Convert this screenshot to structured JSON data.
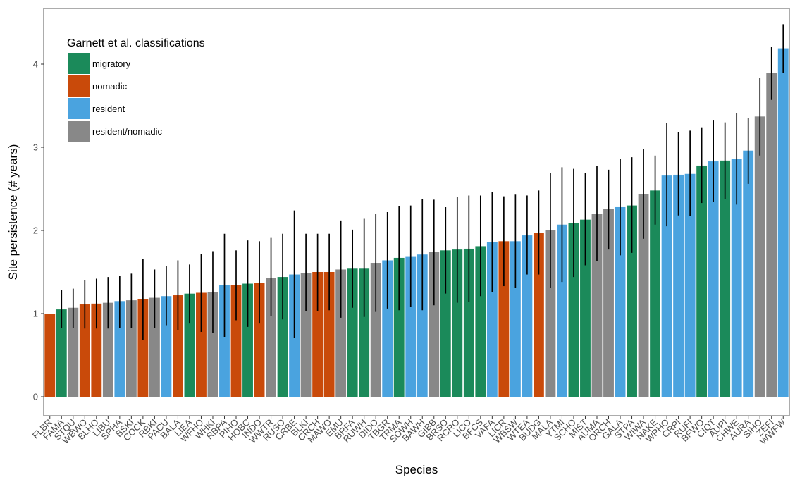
{
  "chart_data": {
    "type": "bar",
    "xlabel": "Species",
    "ylabel": "Site persistence (# years)",
    "ylim": [
      0,
      4.5
    ],
    "yticks": [
      0,
      1,
      2,
      3,
      4
    ],
    "grid": false,
    "error_bars": true,
    "legend": {
      "title": "Garnett et al. classifications",
      "placement": "top-left",
      "entries": [
        {
          "key": "migratory",
          "label": "migratory",
          "color": "#1b8a5a"
        },
        {
          "key": "nomadic",
          "label": "nomadic",
          "color": "#c94a0a"
        },
        {
          "key": "resident",
          "label": "resident",
          "color": "#4aa3df"
        },
        {
          "key": "resident/nomadic",
          "label": "resident/nomadic",
          "color": "#888888"
        }
      ]
    },
    "bars": [
      {
        "category": "FLBR",
        "value": 1.0,
        "class": "nomadic"
      },
      {
        "category": "FAMA",
        "value": 1.05,
        "class": "migratory",
        "err": [
          0.83,
          1.28
        ]
      },
      {
        "category": "STQU",
        "value": 1.07,
        "class": "resident/nomadic",
        "err": [
          0.83,
          1.3
        ]
      },
      {
        "category": "WBWO",
        "value": 1.11,
        "class": "nomadic",
        "err": [
          0.82,
          1.4
        ]
      },
      {
        "category": "BLHO",
        "value": 1.12,
        "class": "nomadic",
        "err": [
          0.82,
          1.42
        ]
      },
      {
        "category": "LIBU",
        "value": 1.13,
        "class": "resident/nomadic",
        "err": [
          0.82,
          1.44
        ]
      },
      {
        "category": "SPHA",
        "value": 1.15,
        "class": "resident",
        "err": [
          0.83,
          1.45
        ]
      },
      {
        "category": "BSKI",
        "value": 1.16,
        "class": "resident/nomadic",
        "err": [
          0.83,
          1.48
        ]
      },
      {
        "category": "COCK",
        "value": 1.17,
        "class": "nomadic",
        "err": [
          0.68,
          1.66
        ]
      },
      {
        "category": "RBKI",
        "value": 1.19,
        "class": "resident/nomadic",
        "err": [
          0.83,
          1.53
        ]
      },
      {
        "category": "PACU",
        "value": 1.21,
        "class": "resident",
        "err": [
          0.86,
          1.57
        ]
      },
      {
        "category": "BALA",
        "value": 1.22,
        "class": "nomadic",
        "err": [
          0.8,
          1.64
        ]
      },
      {
        "category": "LIEA",
        "value": 1.24,
        "class": "migratory",
        "err": [
          0.88,
          1.59
        ]
      },
      {
        "category": "WFHO",
        "value": 1.25,
        "class": "nomadic",
        "err": [
          0.78,
          1.72
        ]
      },
      {
        "category": "WHKI",
        "value": 1.26,
        "class": "resident/nomadic",
        "err": [
          0.77,
          1.75
        ]
      },
      {
        "category": "RBPA",
        "value": 1.34,
        "class": "resident",
        "err": [
          0.72,
          1.96
        ]
      },
      {
        "category": "PIHO",
        "value": 1.34,
        "class": "nomadic",
        "err": [
          0.92,
          1.76
        ]
      },
      {
        "category": "HOBC",
        "value": 1.36,
        "class": "migratory",
        "err": [
          0.84,
          1.88
        ]
      },
      {
        "category": "INDO",
        "value": 1.37,
        "class": "nomadic",
        "err": [
          0.88,
          1.87
        ]
      },
      {
        "category": "WWTR",
        "value": 1.43,
        "class": "resident/nomadic",
        "err": [
          0.97,
          1.91
        ]
      },
      {
        "category": "RUSO",
        "value": 1.44,
        "class": "migratory",
        "err": [
          0.93,
          1.96
        ]
      },
      {
        "category": "CRBE",
        "value": 1.47,
        "class": "resident",
        "err": [
          0.71,
          2.24
        ]
      },
      {
        "category": "BLKI",
        "value": 1.49,
        "class": "resident/nomadic",
        "err": [
          1.03,
          1.96
        ]
      },
      {
        "category": "CRCH",
        "value": 1.5,
        "class": "nomadic",
        "err": [
          1.03,
          1.96
        ]
      },
      {
        "category": "MAWO",
        "value": 1.5,
        "class": "nomadic",
        "err": [
          1.04,
          1.96
        ]
      },
      {
        "category": "EMU",
        "value": 1.53,
        "class": "resident/nomadic",
        "err": [
          0.95,
          2.12
        ]
      },
      {
        "category": "BRFA",
        "value": 1.54,
        "class": "migratory",
        "err": [
          1.07,
          2.01
        ]
      },
      {
        "category": "RUWH",
        "value": 1.54,
        "class": "migratory",
        "err": [
          0.96,
          2.14
        ]
      },
      {
        "category": "DIDO",
        "value": 1.61,
        "class": "resident/nomadic",
        "err": [
          1.02,
          2.2
        ]
      },
      {
        "category": "TBGR",
        "value": 1.64,
        "class": "resident",
        "err": [
          1.06,
          2.22
        ]
      },
      {
        "category": "TRMA",
        "value": 1.67,
        "class": "migratory",
        "err": [
          1.04,
          2.29
        ]
      },
      {
        "category": "SOWH",
        "value": 1.69,
        "class": "resident",
        "err": [
          1.08,
          2.3
        ]
      },
      {
        "category": "BAWH",
        "value": 1.71,
        "class": "resident",
        "err": [
          1.04,
          2.38
        ]
      },
      {
        "category": "GIBB",
        "value": 1.74,
        "class": "resident/nomadic",
        "err": [
          1.1,
          2.37
        ]
      },
      {
        "category": "BRSO",
        "value": 1.76,
        "class": "migratory",
        "err": [
          1.24,
          2.28
        ]
      },
      {
        "category": "RCRO",
        "value": 1.77,
        "class": "migratory",
        "err": [
          1.13,
          2.4
        ]
      },
      {
        "category": "LICO",
        "value": 1.78,
        "class": "migratory",
        "err": [
          1.14,
          2.42
        ]
      },
      {
        "category": "BFCS",
        "value": 1.81,
        "class": "migratory",
        "err": [
          1.21,
          2.42
        ]
      },
      {
        "category": "VAFA",
        "value": 1.86,
        "class": "resident",
        "err": [
          1.26,
          2.46
        ]
      },
      {
        "category": "LICR",
        "value": 1.87,
        "class": "nomadic",
        "err": [
          1.33,
          2.41
        ]
      },
      {
        "category": "WBSW",
        "value": 1.87,
        "class": "resident",
        "err": [
          1.31,
          2.43
        ]
      },
      {
        "category": "WTEA",
        "value": 1.94,
        "class": "resident",
        "err": [
          1.47,
          2.42
        ]
      },
      {
        "category": "BUDG",
        "value": 1.97,
        "class": "nomadic",
        "err": [
          1.47,
          2.48
        ]
      },
      {
        "category": "MALA",
        "value": 2.0,
        "class": "resident/nomadic",
        "err": [
          1.31,
          2.69
        ]
      },
      {
        "category": "YTMI",
        "value": 2.07,
        "class": "resident",
        "err": [
          1.38,
          2.76
        ]
      },
      {
        "category": "SCHO",
        "value": 2.09,
        "class": "migratory",
        "err": [
          1.44,
          2.74
        ]
      },
      {
        "category": "MIST",
        "value": 2.13,
        "class": "migratory",
        "err": [
          1.58,
          2.69
        ]
      },
      {
        "category": "AUMA",
        "value": 2.2,
        "class": "resident/nomadic",
        "err": [
          1.63,
          2.78
        ]
      },
      {
        "category": "ORCH",
        "value": 2.26,
        "class": "resident/nomadic",
        "err": [
          1.77,
          2.73
        ]
      },
      {
        "category": "GALA",
        "value": 2.28,
        "class": "resident",
        "err": [
          1.7,
          2.86
        ]
      },
      {
        "category": "STPA",
        "value": 2.3,
        "class": "migratory",
        "err": [
          1.73,
          2.88
        ]
      },
      {
        "category": "WIWA",
        "value": 2.44,
        "class": "resident/nomadic",
        "err": [
          1.9,
          2.98
        ]
      },
      {
        "category": "NAKE",
        "value": 2.48,
        "class": "migratory",
        "err": [
          2.07,
          2.9
        ]
      },
      {
        "category": "WPHO",
        "value": 2.66,
        "class": "resident",
        "err": [
          2.05,
          3.29
        ]
      },
      {
        "category": "CRPI",
        "value": 2.67,
        "class": "resident",
        "err": [
          2.18,
          3.18
        ]
      },
      {
        "category": "RUFI",
        "value": 2.68,
        "class": "resident",
        "err": [
          2.17,
          3.2
        ]
      },
      {
        "category": "BFWO",
        "value": 2.78,
        "class": "migratory",
        "err": [
          2.33,
          3.24
        ]
      },
      {
        "category": "CIQT",
        "value": 2.83,
        "class": "resident",
        "err": [
          2.34,
          3.33
        ]
      },
      {
        "category": "AUPI",
        "value": 2.84,
        "class": "migratory",
        "err": [
          2.38,
          3.3
        ]
      },
      {
        "category": "CHWE",
        "value": 2.86,
        "class": "resident",
        "err": [
          2.31,
          3.41
        ]
      },
      {
        "category": "AURA",
        "value": 2.96,
        "class": "resident",
        "err": [
          2.56,
          3.35
        ]
      },
      {
        "category": "SIHO",
        "value": 3.37,
        "class": "resident/nomadic",
        "err": [
          2.9,
          3.83
        ]
      },
      {
        "category": "ZEFI",
        "value": 3.89,
        "class": "resident/nomadic",
        "err": [
          3.57,
          4.21
        ]
      },
      {
        "category": "WWFW",
        "value": 4.19,
        "class": "resident",
        "err": [
          3.89,
          4.48
        ]
      }
    ]
  }
}
